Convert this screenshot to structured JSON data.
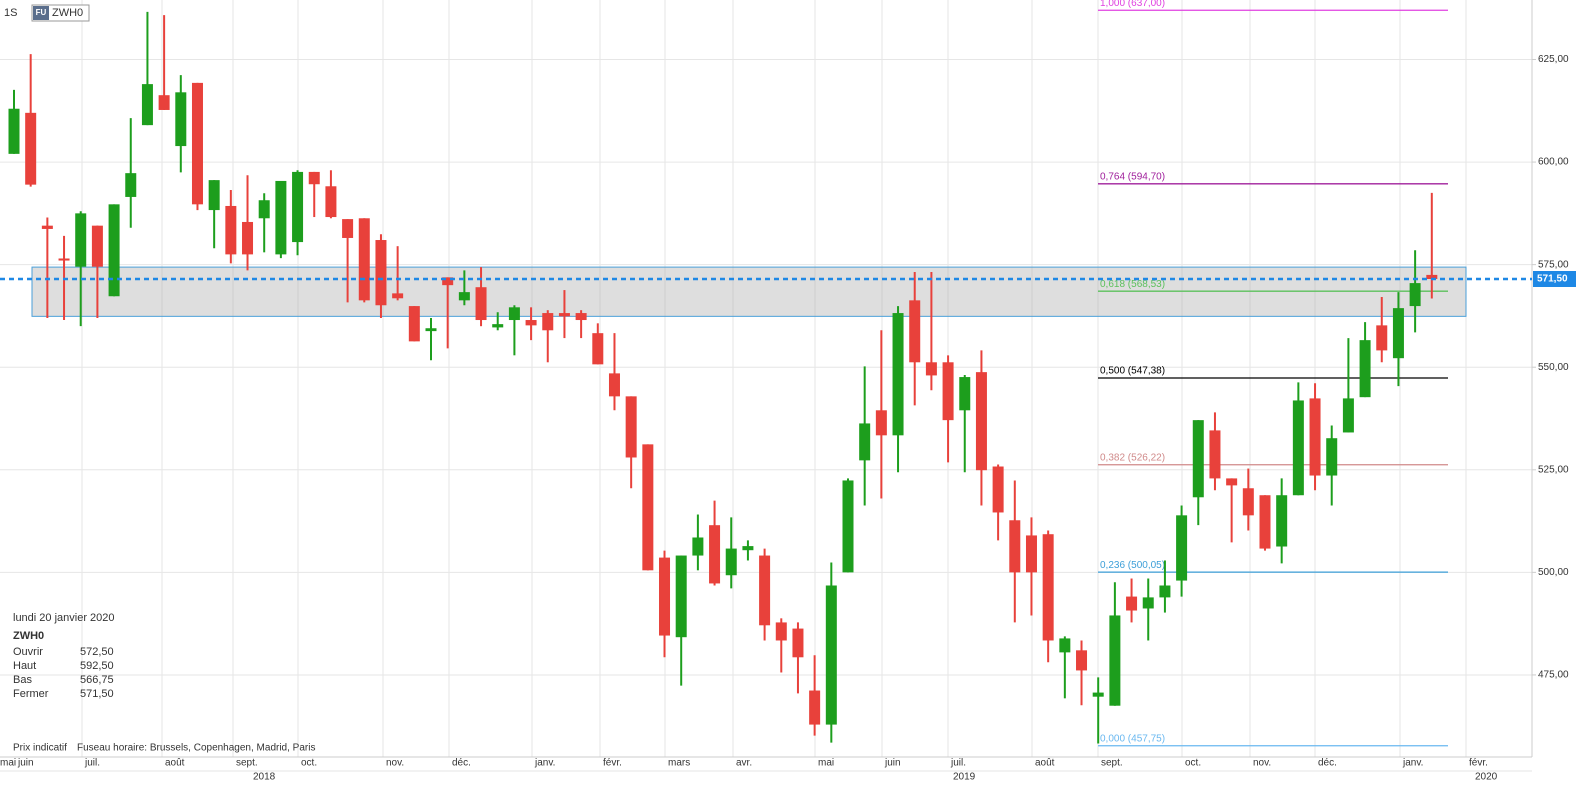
{
  "chart_data": {
    "type": "candlestick",
    "interval": "1S",
    "symbol_badge": "FU",
    "symbol": "ZWH0",
    "up_color": "#1d9e1d",
    "down_color": "#e8413b",
    "open": [
      602,
      612,
      584.5,
      576.5,
      574.5,
      584.5,
      567.3,
      591.5,
      609,
      616.3,
      603.9,
      619.3,
      588.3,
      589.3,
      585.4,
      586.3,
      577.5,
      580.5,
      597.6,
      594.1,
      586.1,
      586.3,
      581,
      568,
      564.9,
      558.8,
      571.9,
      566.3,
      569.5,
      559.7,
      561.5,
      561.5,
      563.2,
      563.2,
      563.2,
      558.3,
      548.5,
      542.9,
      531.2,
      503.6,
      484.2,
      504.1,
      511.5,
      499.3,
      505.4,
      504.1,
      487.8,
      486.3,
      471.2,
      462.9,
      500,
      527.3,
      539.5,
      533.4,
      566.3,
      551.2,
      551.2,
      539.5,
      548.8,
      525.8,
      512.7,
      509,
      509.3,
      480.5,
      481,
      469.7,
      467.5,
      494.1,
      491.2,
      493.9,
      498,
      518.3,
      534.6,
      522.9,
      520.5,
      518.8,
      506.3,
      518.8,
      542.4,
      523.6,
      534.1,
      542.7,
      560.2,
      552.2,
      564.9,
      572.5
    ],
    "high": [
      617.6,
      626.3,
      586.5,
      582,
      588,
      584.5,
      589.7,
      610.7,
      636.6,
      635.8,
      621.2,
      619.3,
      595.6,
      593.2,
      596.8,
      592.4,
      595.4,
      598,
      597.6,
      598,
      586.1,
      586.3,
      582.4,
      579.5,
      564.9,
      562,
      571.9,
      573.6,
      574.4,
      563.4,
      565.1,
      564.6,
      563.9,
      568.8,
      563.9,
      560.7,
      558.3,
      542.9,
      531.2,
      505.3,
      504.1,
      514.1,
      517.5,
      513.4,
      507.8,
      505.8,
      488.8,
      487.8,
      479.8,
      502.4,
      522.9,
      550.2,
      559,
      564.9,
      573.2,
      573.2,
      552.9,
      548.1,
      554.1,
      526.3,
      522.4,
      513.4,
      510.2,
      484.4,
      483.4,
      474.4,
      497.6,
      498.5,
      498.5,
      502.9,
      516.3,
      537.1,
      539,
      522.9,
      525.3,
      518.8,
      522.9,
      546.3,
      546.1,
      535.8,
      557.1,
      561,
      567.1,
      568.3,
      578.5,
      592.5
    ],
    "low": [
      602,
      594,
      562,
      561.5,
      560,
      562,
      567.3,
      584,
      609,
      612.7,
      597.5,
      588.3,
      579,
      575.3,
      573.6,
      578,
      576.6,
      577.3,
      586.6,
      586.3,
      565.8,
      565.8,
      562,
      566.3,
      556.3,
      551.7,
      554.6,
      565.1,
      560,
      559,
      552.9,
      556.6,
      551.2,
      557.1,
      557.1,
      550.7,
      539.5,
      520.5,
      500.5,
      479.3,
      472.4,
      500.5,
      496.8,
      496.1,
      502.9,
      483.4,
      475.6,
      470.5,
      460.2,
      458.5,
      500,
      516.3,
      518,
      524.4,
      540.7,
      544.4,
      526.8,
      524.4,
      516.3,
      507.8,
      487.8,
      489.5,
      478.1,
      469.3,
      467.6,
      458.3,
      467.5,
      487.8,
      483.4,
      490.2,
      494.1,
      511.5,
      520,
      507.3,
      510.2,
      505.3,
      502.2,
      518.8,
      520,
      516.3,
      534.1,
      542.7,
      551.2,
      545.4,
      558.5,
      566.75
    ],
    "close": [
      613,
      594.5,
      583.7,
      576,
      587.5,
      574.5,
      589.7,
      597.3,
      619,
      612.7,
      617,
      589.7,
      595.6,
      577.5,
      577.5,
      590.7,
      595.4,
      597.6,
      594.6,
      586.6,
      581.5,
      566.3,
      565.1,
      566.8,
      556.3,
      559.5,
      570,
      568.3,
      561.5,
      560.5,
      564.6,
      560.2,
      559,
      562.4,
      561.5,
      550.7,
      542.9,
      528,
      500.5,
      484.6,
      504.1,
      508.5,
      497.3,
      505.8,
      506.4,
      487.1,
      483.4,
      479.3,
      462.9,
      496.8,
      522.4,
      536.3,
      533.4,
      563.2,
      551.2,
      548,
      537.1,
      547.6,
      524.9,
      514.6,
      500,
      500,
      483.4,
      483.9,
      476.1,
      470.7,
      489.5,
      490.7,
      493.9,
      496.8,
      513.9,
      537.1,
      522.9,
      521.2,
      513.9,
      505.8,
      518.8,
      541.9,
      523.6,
      532.7,
      542.4,
      556.6,
      554.1,
      564.4,
      570.5,
      571.5
    ],
    "ylim": [
      455,
      639.5
    ],
    "yticks": [
      {
        "value": 475,
        "label": "475,00"
      },
      {
        "value": 500,
        "label": "500,00"
      },
      {
        "value": 525,
        "label": "525,00"
      },
      {
        "value": 550,
        "label": "550,00"
      },
      {
        "value": 575,
        "label": "575,00"
      },
      {
        "value": 600,
        "label": "600,00"
      },
      {
        "value": 625,
        "label": "625,00"
      }
    ],
    "last_price": {
      "value": 571.5,
      "label": "571,50"
    },
    "zone": [
      562.4,
      574.4
    ],
    "fibonacci": [
      {
        "value": 637,
        "label": "1,000 (637,00)",
        "color": "#e040e0"
      },
      {
        "value": 594.7,
        "label": "0,764 (594,70)",
        "color": "#a0209c"
      },
      {
        "value": 568.53,
        "label": "0,618 (568,53)",
        "color": "#5cc05c"
      },
      {
        "value": 547.38,
        "label": "0,500 (547,38)",
        "color": "#000000"
      },
      {
        "value": 526.22,
        "label": "0,382 (526,22)",
        "color": "#d08a8a"
      },
      {
        "value": 500.05,
        "label": "0,236 (500,05)",
        "color": "#3d9fd8"
      },
      {
        "value": 457.75,
        "label": "0,000 (457,75)",
        "color": "#6ab8f0"
      }
    ],
    "months": [
      "mai",
      "juin",
      "juil.",
      "août",
      "sept.",
      "oct.",
      "nov.",
      "déc.",
      "janv.",
      "févr.",
      "mars",
      "avr.",
      "mai",
      "juin",
      "juil.",
      "août",
      "sept.",
      "oct.",
      "nov.",
      "déc.",
      "janv.",
      "févr."
    ],
    "years": [
      "2018",
      "2019",
      "2020"
    ],
    "grid": true
  },
  "info": {
    "date": "lundi 20 janvier 2020",
    "symbol": "ZWH0",
    "rows": [
      [
        "Ouvrir",
        "572,50"
      ],
      [
        "Haut",
        "592,50"
      ],
      [
        "Bas",
        "566,75"
      ],
      [
        "Fermer",
        "571,50"
      ]
    ]
  },
  "footer": {
    "note": "Prix indicatif",
    "timezone": "Fuseau horaire: Brussels, Copenhagen, Madrid, Paris"
  }
}
